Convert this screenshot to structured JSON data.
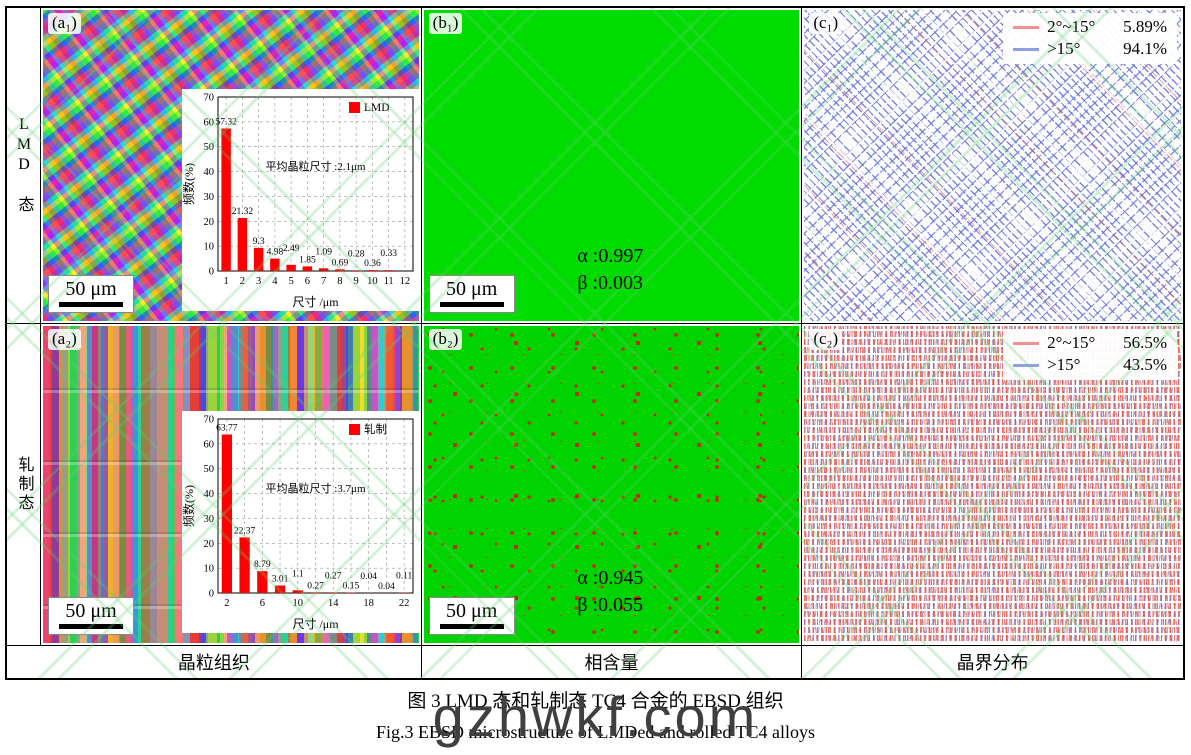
{
  "figure": {
    "caption_cn": "图 3  LMD 态和轧制态 TC4 合金的 EBSD 组织",
    "caption_en": "Fig.3  EBSD microstructure of LMDed and rolled TC4 alloys",
    "watermark": "gzhwkf.com",
    "row_labels": [
      "LMD 态",
      "轧制态"
    ],
    "column_labels": [
      "晶粒组织",
      "相含量",
      "晶界分布"
    ]
  },
  "panels": {
    "a1": {
      "tag": "(a₁)",
      "scale_bar": "50 μm"
    },
    "b1": {
      "tag": "(b₁)",
      "scale_bar": "50 μm",
      "alpha": "α :0.997",
      "beta": "β :0.003"
    },
    "c1": {
      "tag": "(c₁)",
      "legend": [
        {
          "label": "2°~15°",
          "value": "5.89%",
          "color": "#f09090"
        },
        {
          "label": ">15°",
          "value": "94.1%",
          "color": "#8f9fe0"
        }
      ]
    },
    "a2": {
      "tag": "(a₂)",
      "scale_bar": "50 μm"
    },
    "b2": {
      "tag": "(b₂)",
      "scale_bar": "50 μm",
      "alpha": "α :0.945",
      "beta": "β :0.055"
    },
    "c2": {
      "tag": "(c₂)",
      "legend": [
        {
          "label": "2°~15°",
          "value": "56.5%",
          "color": "#f09090"
        },
        {
          "label": ">15°",
          "value": "43.5%",
          "color": "#8f9fe0"
        }
      ]
    }
  },
  "chart_data": [
    {
      "id": "grain-size-histogram-lmd",
      "type": "bar",
      "legend": "LMD",
      "bar_color": "#ff0000",
      "annotation": "平均晶粒尺寸 :2.1μm",
      "xlabel": "尺寸 /μm",
      "ylabel": "频数(%)",
      "ylim": [
        0,
        70
      ],
      "ytick_step": 10,
      "slots": 12,
      "xtick_labels": [
        "1",
        "2",
        "3",
        "4",
        "5",
        "6",
        "7",
        "8",
        "9",
        "10",
        "11",
        "12"
      ],
      "xtick_slots": [
        0,
        1,
        2,
        3,
        4,
        5,
        6,
        7,
        8,
        9,
        10,
        11
      ],
      "values": [
        57.32,
        21.32,
        9.3,
        4.98,
        2.49,
        1.85,
        1.09,
        0.69,
        0.28,
        0.36,
        0.33
      ]
    },
    {
      "id": "grain-size-histogram-rolled",
      "type": "bar",
      "legend": "轧制",
      "bar_color": "#ff0000",
      "annotation": "平均晶粒尺寸 :3.7μm",
      "xlabel": "尺寸 /μm",
      "ylabel": "频数(%)",
      "ylim": [
        0,
        70
      ],
      "ytick_step": 10,
      "slots": 11,
      "xtick_labels": [
        "2",
        "6",
        "10",
        "14",
        "18",
        "22"
      ],
      "xtick_slots": [
        0,
        2,
        4,
        6,
        8,
        10
      ],
      "values": [
        63.77,
        22.37,
        8.79,
        3.01,
        1.1,
        0.27,
        0.27,
        0.15,
        0.04,
        0.04,
        0.11
      ]
    }
  ]
}
